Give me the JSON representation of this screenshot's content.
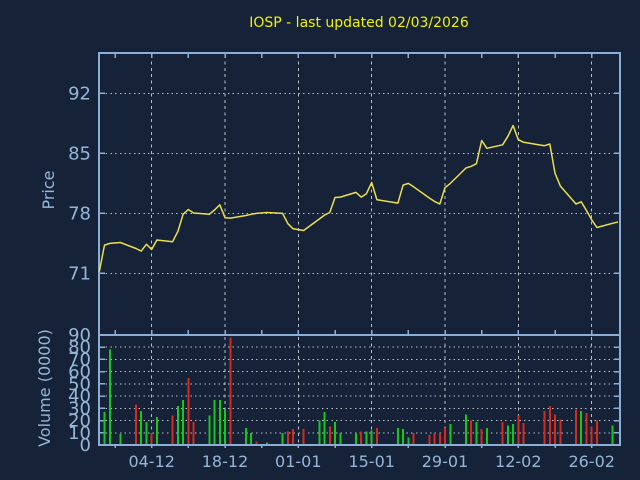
{
  "colors": {
    "background": "#152238",
    "axis": "#8aaed6",
    "label": "#96b6d8",
    "grid": "#b9bfc4",
    "title": "#f2f200",
    "price_line": "#ebdf4e",
    "volume_up": "#14c81e",
    "volume_down": "#d62a1c"
  },
  "chart_data": [
    {
      "type": "line",
      "panel": "price",
      "title": "IOSP - last updated 02/03/2026",
      "ylabel": "Price",
      "yticks": [
        71,
        78,
        85,
        92
      ],
      "ylim": [
        63.5,
        96.8
      ],
      "grid": true,
      "legend": "none",
      "x_tick_labels": [
        {
          "label": "04-12",
          "day": 10
        },
        {
          "label": "18-12",
          "day": 24
        },
        {
          "label": "01-01",
          "day": 38
        },
        {
          "label": "15-01",
          "day": 52
        },
        {
          "label": "29-01",
          "day": 66
        },
        {
          "label": "12-02",
          "day": 80
        },
        {
          "label": "26-02",
          "day": 94
        }
      ],
      "columns": [
        "date",
        "day_index",
        "close"
      ],
      "points": [
        [
          "24-11",
          0,
          71.2
        ],
        [
          "25-11",
          1,
          74.3
        ],
        [
          "26-11",
          2,
          74.5
        ],
        [
          "28-11",
          4,
          74.6
        ],
        [
          "01-12",
          7,
          73.9
        ],
        [
          "02-12",
          8,
          73.6
        ],
        [
          "03-12",
          9,
          74.4
        ],
        [
          "04-12",
          10,
          73.8
        ],
        [
          "05-12",
          11,
          74.9
        ],
        [
          "08-12",
          14,
          74.7
        ],
        [
          "09-12",
          15,
          75.9
        ],
        [
          "10-12",
          16,
          77.9
        ],
        [
          "11-12",
          17,
          78.45
        ],
        [
          "12-12",
          18,
          78.05
        ],
        [
          "15-12",
          21,
          77.9
        ],
        [
          "16-12",
          22,
          78.4
        ],
        [
          "17-12",
          23,
          79.0
        ],
        [
          "18-12",
          24,
          77.5
        ],
        [
          "19-12",
          25,
          77.45
        ],
        [
          "22-12",
          28,
          77.75
        ],
        [
          "23-12",
          29,
          77.9
        ],
        [
          "24-12",
          30,
          78.0
        ],
        [
          "26-12",
          32,
          78.1
        ],
        [
          "29-12",
          35,
          78.0
        ],
        [
          "30-12",
          36,
          76.8
        ],
        [
          "31-12",
          37,
          76.2
        ],
        [
          "02-01",
          39,
          76.0
        ],
        [
          "05-01",
          42,
          77.35
        ],
        [
          "06-01",
          43,
          77.8
        ],
        [
          "07-01",
          44,
          78.1
        ],
        [
          "08-01",
          45,
          79.85
        ],
        [
          "09-01",
          46,
          79.9
        ],
        [
          "12-01",
          49,
          80.45
        ],
        [
          "13-01",
          50,
          79.9
        ],
        [
          "14-01",
          51,
          80.3
        ],
        [
          "15-01",
          52,
          81.6
        ],
        [
          "16-01",
          53,
          79.6
        ],
        [
          "20-01",
          57,
          79.2
        ],
        [
          "21-01",
          58,
          81.3
        ],
        [
          "22-01",
          59,
          81.5
        ],
        [
          "23-01",
          60,
          81.1
        ],
        [
          "26-01",
          63,
          79.8
        ],
        [
          "27-01",
          64,
          79.4
        ],
        [
          "28-01",
          65,
          79.1
        ],
        [
          "29-01",
          66,
          81.0
        ],
        [
          "30-01",
          67,
          81.5
        ],
        [
          "02-02",
          70,
          83.3
        ],
        [
          "03-02",
          71,
          83.5
        ],
        [
          "04-02",
          72,
          83.8
        ],
        [
          "05-02",
          73,
          86.5
        ],
        [
          "06-02",
          74,
          85.6
        ],
        [
          "09-02",
          77,
          86.0
        ],
        [
          "10-02",
          78,
          87.0
        ],
        [
          "11-02",
          79,
          88.25
        ],
        [
          "12-02",
          80,
          86.6
        ],
        [
          "13-02",
          81,
          86.3
        ],
        [
          "17-02",
          85,
          85.9
        ],
        [
          "18-02",
          86,
          86.1
        ],
        [
          "19-02",
          87,
          82.7
        ],
        [
          "20-02",
          88,
          81.2
        ],
        [
          "23-02",
          91,
          79.1
        ],
        [
          "24-02",
          92,
          79.35
        ],
        [
          "25-02",
          93,
          78.35
        ],
        [
          "26-02",
          94,
          77.25
        ],
        [
          "27-02",
          95,
          76.35
        ],
        [
          "02-03",
          98,
          76.85
        ],
        [
          "03-03",
          99,
          77.0
        ]
      ]
    },
    {
      "type": "bar",
      "panel": "volume",
      "ylabel": "Volume (0000)",
      "yticks": [
        0,
        10,
        20,
        30,
        40,
        50,
        60,
        70,
        80,
        90
      ],
      "ylim": [
        0,
        90
      ],
      "grid": true,
      "columns": [
        "date",
        "day_index",
        "volume",
        "bar_color"
      ],
      "bars": [
        [
          "25-11",
          1,
          27,
          "green"
        ],
        [
          "26-11",
          2,
          78,
          "green"
        ],
        [
          "28-11",
          4,
          9,
          "green"
        ],
        [
          "01-12",
          7,
          33,
          "red"
        ],
        [
          "02-12",
          8,
          28,
          "green"
        ],
        [
          "03-12",
          9,
          19,
          "green"
        ],
        [
          "04-12",
          10,
          10,
          "red"
        ],
        [
          "05-12",
          11,
          23,
          "green"
        ],
        [
          "08-12",
          14,
          24,
          "red"
        ],
        [
          "09-12",
          15,
          32,
          "green"
        ],
        [
          "10-12",
          16,
          37,
          "green"
        ],
        [
          "11-12",
          17,
          55,
          "red"
        ],
        [
          "12-12",
          18,
          19,
          "red"
        ],
        [
          "15-12",
          21,
          24,
          "green"
        ],
        [
          "16-12",
          22,
          37,
          "green"
        ],
        [
          "17-12",
          23,
          37,
          "green"
        ],
        [
          "18-12",
          24,
          29,
          "green"
        ],
        [
          "19-12",
          25,
          88,
          "red"
        ],
        [
          "22-12",
          28,
          14,
          "green"
        ],
        [
          "23-12",
          29,
          10,
          "green"
        ],
        [
          "24-12",
          30,
          3,
          "red"
        ],
        [
          "26-12",
          32,
          2,
          "green"
        ],
        [
          "29-12",
          35,
          10,
          "green"
        ],
        [
          "30-12",
          36,
          11,
          "red"
        ],
        [
          "31-12",
          37,
          13,
          "red"
        ],
        [
          "02-01",
          39,
          13,
          "red"
        ],
        [
          "05-01",
          42,
          20,
          "green"
        ],
        [
          "06-01",
          43,
          27,
          "green"
        ],
        [
          "07-01",
          44,
          15,
          "red"
        ],
        [
          "08-01",
          45,
          19,
          "green"
        ],
        [
          "09-01",
          46,
          10,
          "green"
        ],
        [
          "12-01",
          49,
          10,
          "green"
        ],
        [
          "13-01",
          50,
          11,
          "red"
        ],
        [
          "14-01",
          51,
          11,
          "green"
        ],
        [
          "15-01",
          52,
          12,
          "green"
        ],
        [
          "16-01",
          53,
          14,
          "red"
        ],
        [
          "20-01",
          57,
          14,
          "green"
        ],
        [
          "21-01",
          58,
          13,
          "green"
        ],
        [
          "22-01",
          59,
          6,
          "green"
        ],
        [
          "23-01",
          60,
          10,
          "red"
        ],
        [
          "26-01",
          63,
          8,
          "red"
        ],
        [
          "27-01",
          64,
          10,
          "red"
        ],
        [
          "28-01",
          65,
          10,
          "red"
        ],
        [
          "29-01",
          66,
          14,
          "red"
        ],
        [
          "30-01",
          67,
          17,
          "green"
        ],
        [
          "02-02",
          70,
          25,
          "green"
        ],
        [
          "03-02",
          71,
          20,
          "red"
        ],
        [
          "04-02",
          72,
          19,
          "green"
        ],
        [
          "05-02",
          73,
          13,
          "red"
        ],
        [
          "06-02",
          74,
          14,
          "green"
        ],
        [
          "09-02",
          77,
          19,
          "red"
        ],
        [
          "10-02",
          78,
          16,
          "green"
        ],
        [
          "11-02",
          79,
          17,
          "green"
        ],
        [
          "12-02",
          80,
          24,
          "red"
        ],
        [
          "13-02",
          81,
          18,
          "red"
        ],
        [
          "17-02",
          85,
          28,
          "red"
        ],
        [
          "18-02",
          86,
          32,
          "red"
        ],
        [
          "19-02",
          87,
          25,
          "red"
        ],
        [
          "20-02",
          88,
          21,
          "red"
        ],
        [
          "23-02",
          91,
          29,
          "red"
        ],
        [
          "24-02",
          92,
          28,
          "green"
        ],
        [
          "25-02",
          93,
          26,
          "red"
        ],
        [
          "26-02",
          94,
          15,
          "red"
        ],
        [
          "27-02",
          95,
          20,
          "red"
        ],
        [
          "02-03",
          98,
          16,
          "green"
        ]
      ]
    }
  ]
}
